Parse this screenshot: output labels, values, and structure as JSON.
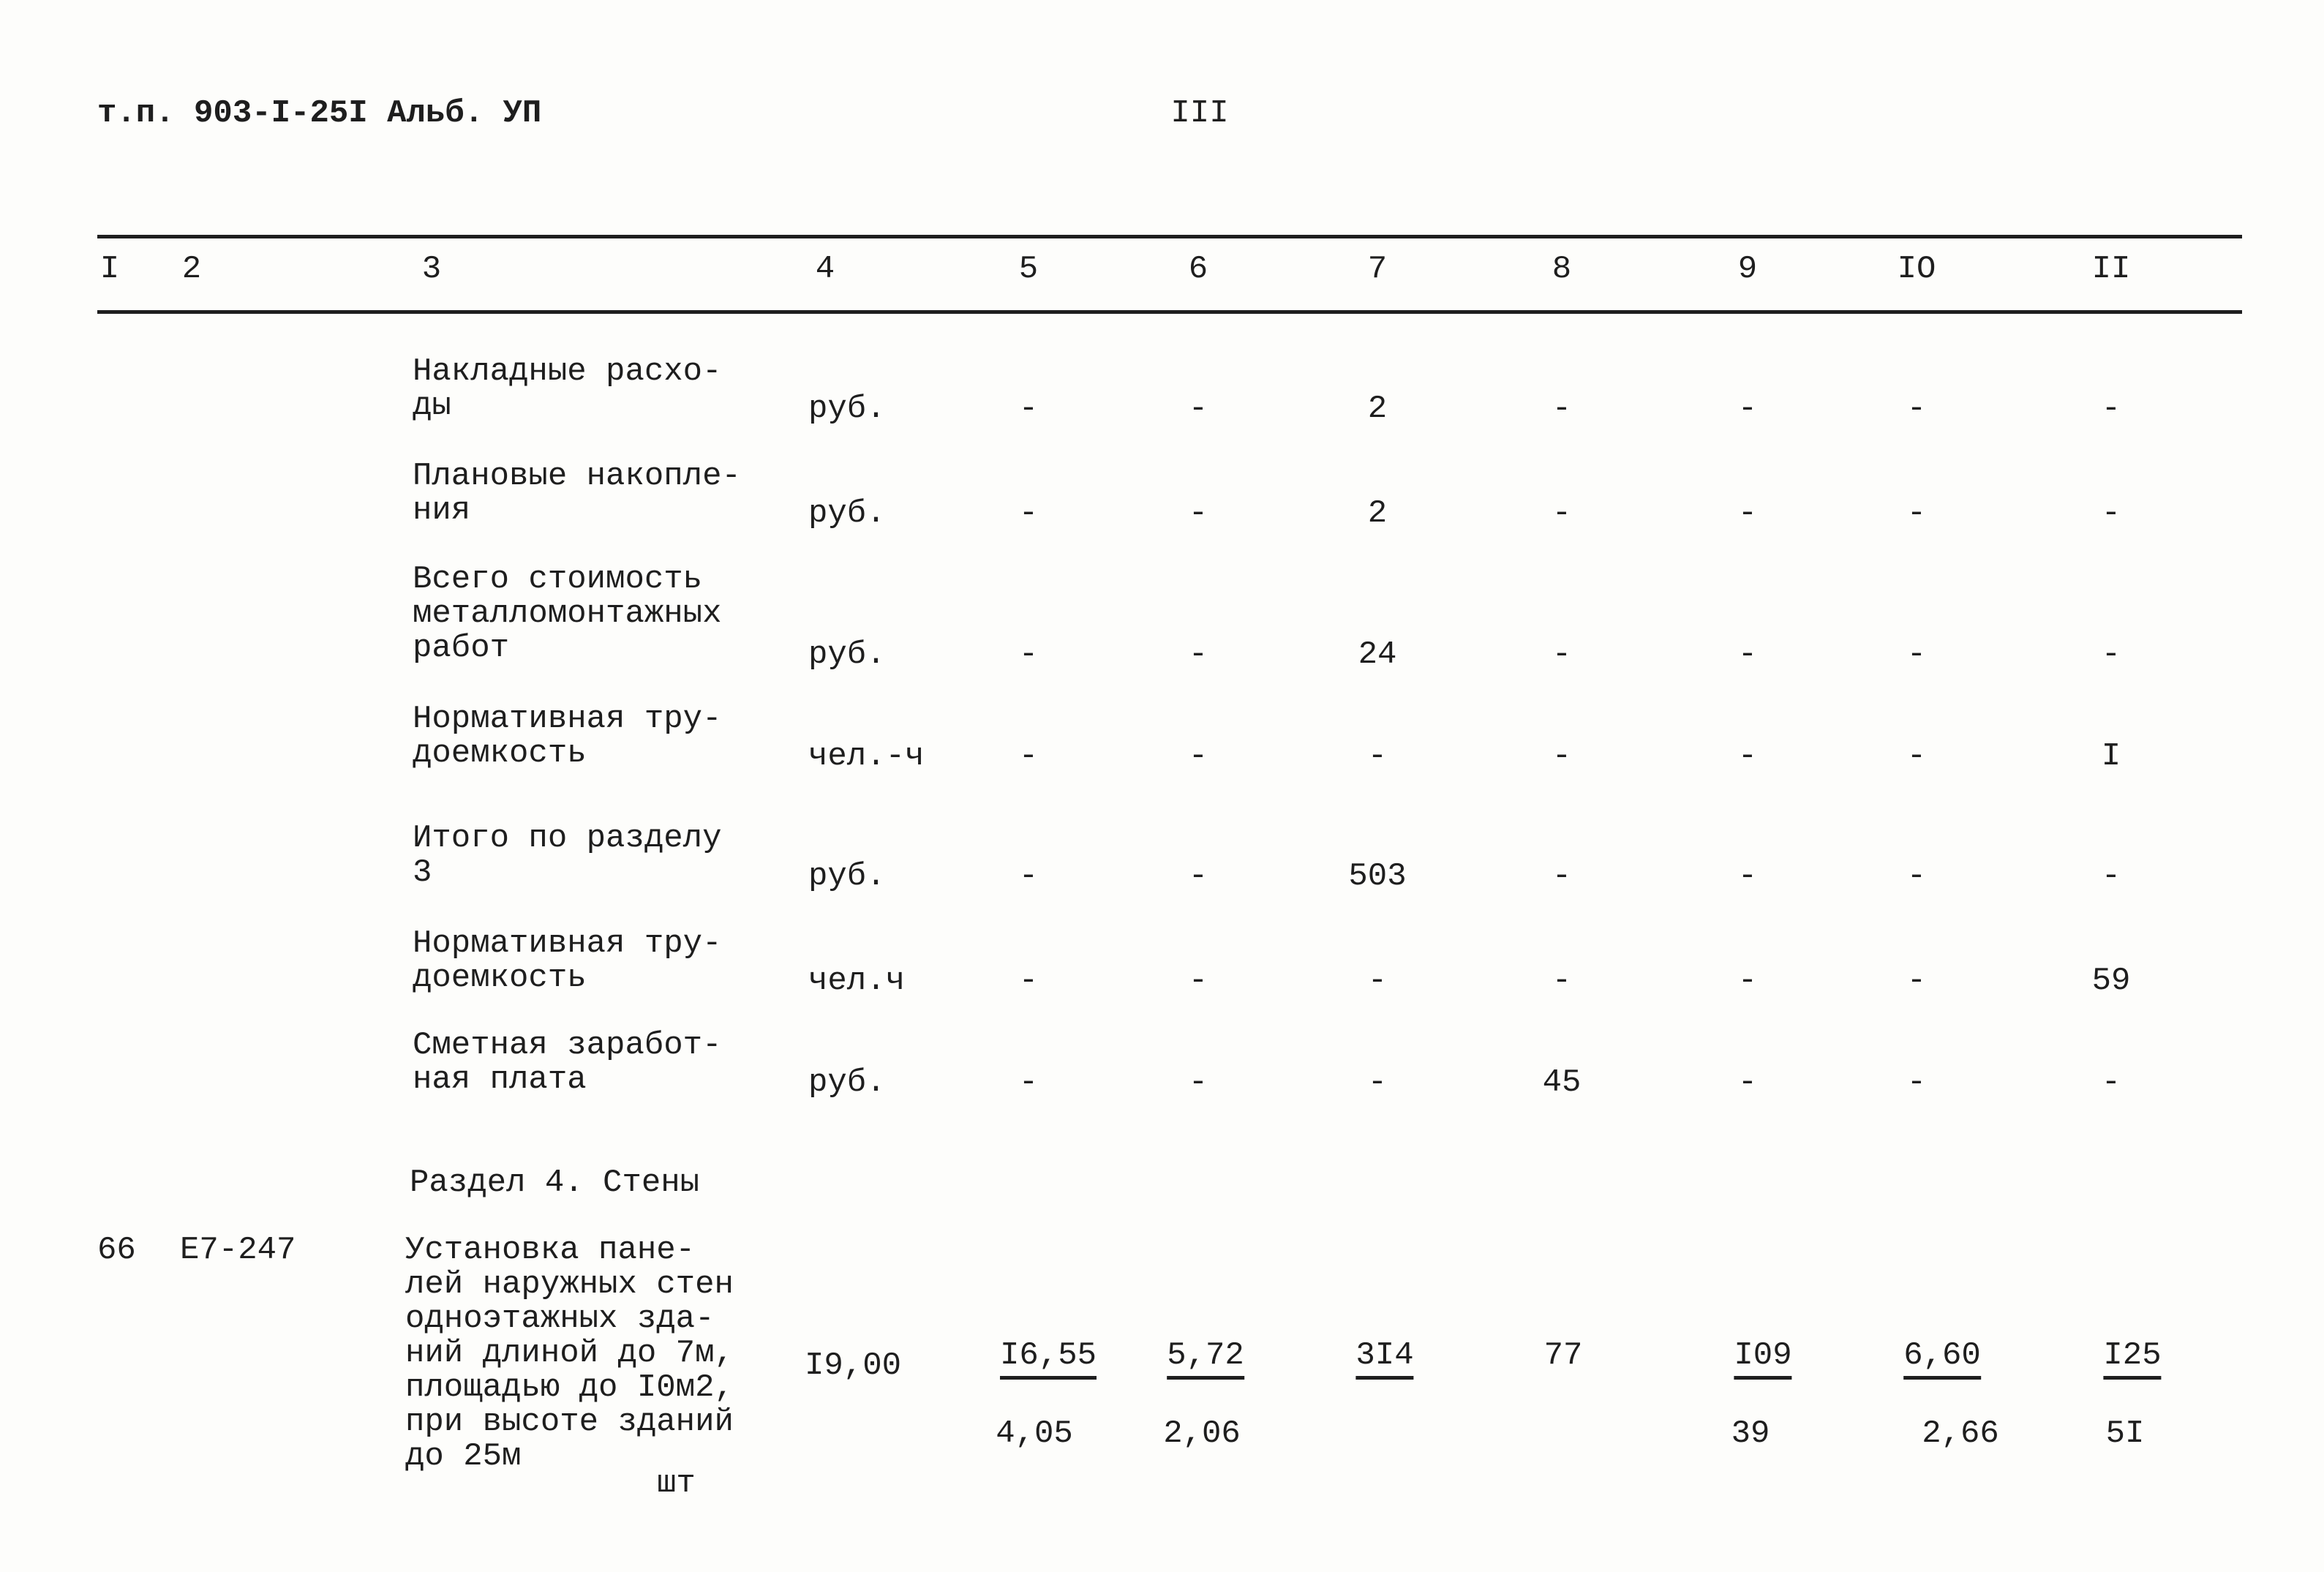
{
  "header": {
    "doc_ref": "т.п. 903-I-25I Альб. УП",
    "page_number": "III"
  },
  "table": {
    "columns": [
      "I",
      "2",
      "3",
      "4",
      "5",
      "6",
      "7",
      "8",
      "9",
      "IO",
      "II"
    ],
    "rows": [
      {
        "name": "Накладные расхо-\nды",
        "unit": "руб.",
        "values": [
          "-",
          "-",
          "2",
          "-",
          "-",
          "-",
          "-"
        ]
      },
      {
        "name": "Плановые накопле-\nния",
        "unit": "руб.",
        "values": [
          "-",
          "-",
          "2",
          "-",
          "-",
          "-",
          "-"
        ]
      },
      {
        "name": "Всего стоимость\nметалломонтажных\nработ",
        "unit": "руб.",
        "values": [
          "-",
          "-",
          "24",
          "-",
          "-",
          "-",
          "-"
        ]
      },
      {
        "name": "Нормативная тру-\nдоемкость",
        "unit": "чел.-ч",
        "values": [
          "-",
          "-",
          "-",
          "-",
          "-",
          "-",
          "I"
        ]
      },
      {
        "name": "Итого по разделу\n3",
        "unit": "руб.",
        "values": [
          "-",
          "-",
          "503",
          "-",
          "-",
          "-",
          "-"
        ]
      },
      {
        "name": "Нормативная тру-\nдоемкость",
        "unit": "чел.ч",
        "values": [
          "-",
          "-",
          "-",
          "-",
          "-",
          "-",
          "59"
        ]
      },
      {
        "name": "Сметная заработ-\nная плата",
        "unit": "руб.",
        "values": [
          "-",
          "-",
          "-",
          "45",
          "-",
          "-",
          "-"
        ]
      }
    ],
    "section": "Раздел 4. Стены",
    "item": {
      "number": "66",
      "code": "Е7-247",
      "name": "Установка пане-\nлей наружных стен\nодноэтажных зда-\nний длиной до 7м,\nплощадью до I0м2,\nпри высоте зданий\nдо 25м",
      "unit": "шт",
      "quantity": "I9,00",
      "top_values": [
        "I6,55",
        "5,72",
        "3I4",
        "77",
        "I09",
        "6,60",
        "I25"
      ],
      "bottom_values": [
        "4,05",
        "2,06",
        "39",
        "2,66",
        "5I"
      ]
    }
  }
}
